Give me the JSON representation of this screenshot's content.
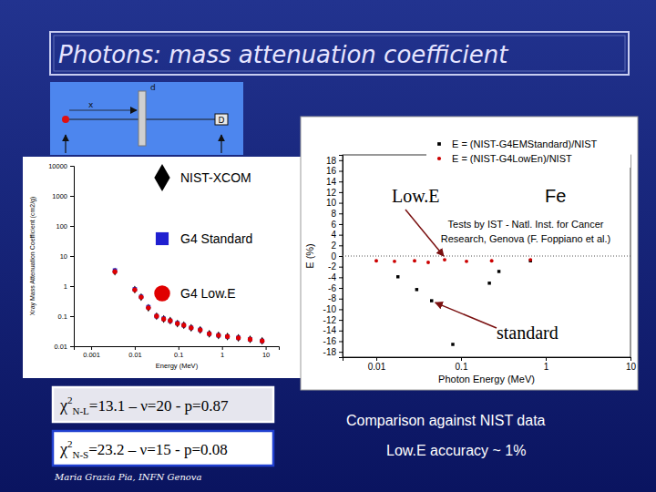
{
  "slide": {
    "title": "Photons: mass attenuation coefficient",
    "chi2": [
      {
        "symbol": "χ",
        "sup": "2",
        "sub": "N-L",
        "text": "=13.1 – ν=20 - p=0.87"
      },
      {
        "symbol": "χ",
        "sup": "2",
        "sub": "N-S",
        "text": "=23.2 – ν=15 - p=0.08"
      }
    ],
    "notes": [
      "Comparison against NIST data",
      "Low.E accuracy ~ 1%"
    ],
    "footer": "Maria Grazia Pia, INFN Genova"
  },
  "diagram": {
    "labels": {
      "thickness": "d",
      "depth": "x",
      "detector": "D"
    }
  },
  "chart_data": [
    {
      "type": "scatter",
      "x_label": "Energy (MeV)",
      "y_label": "Xray Mass Attenuation Coefficient (cm2/g)",
      "log": true,
      "xlim": [
        0.0004,
        20
      ],
      "ylim": [
        0.01,
        10000
      ],
      "xticks": [
        0.001,
        0.01,
        0.1,
        1,
        10
      ],
      "yticks": [
        0.01,
        0.1,
        1,
        10,
        100,
        1000,
        10000
      ],
      "legend": "right",
      "x": [
        0.0035,
        0.01,
        0.014,
        0.0205,
        0.0316,
        0.046,
        0.065,
        0.095,
        0.133,
        0.196,
        0.316,
        0.51,
        0.83,
        1.33,
        2.37,
        4.4,
        8.3
      ],
      "series": [
        {
          "name": "NIST-XCOM",
          "color": "#000000",
          "marker": "diamond",
          "values": [
            3.05,
            0.76,
            0.43,
            0.19,
            0.1,
            0.081,
            0.071,
            0.057,
            0.05,
            0.041,
            0.035,
            0.026,
            0.023,
            0.021,
            0.019,
            0.017,
            0.015
          ]
        },
        {
          "name": "G4 Standard",
          "color": "#1f1fd0",
          "marker": "square",
          "values": [
            3.3,
            0.78,
            0.44,
            0.2,
            0.1,
            0.082,
            0.07,
            0.058,
            0.05,
            0.041,
            0.035,
            0.026,
            0.023,
            0.021,
            0.019,
            0.017,
            0.015
          ]
        },
        {
          "name": "G4 Low.E",
          "color": "#e00000",
          "marker": "circle",
          "values": [
            3.02,
            0.75,
            0.43,
            0.19,
            0.1,
            0.08,
            0.071,
            0.057,
            0.05,
            0.041,
            0.035,
            0.026,
            0.023,
            0.021,
            0.019,
            0.017,
            0.015
          ]
        }
      ]
    },
    {
      "type": "scatter",
      "x_label": "Photon Energy (MeV)",
      "y_label": "E (%)",
      "log": "x",
      "xlim": [
        0.004,
        10
      ],
      "ylim": [
        -19,
        19
      ],
      "xticks": [
        0.01,
        0.1,
        1,
        10
      ],
      "yticks": [
        18,
        16,
        14,
        12,
        10,
        8,
        6,
        4,
        2,
        0,
        -2,
        -4,
        -6,
        -8,
        -10,
        -12,
        -14,
        -16,
        -18
      ],
      "legend": "upper right",
      "reference_lines": [
        0
      ],
      "annotations": {
        "method": "Low.E",
        "material": "Fe",
        "credit": [
          "Tests by IST - Natl. Inst. for Cancer",
          "Research, Genova (F. Foppiano et al.)"
        ],
        "pointer": "standard"
      },
      "series": [
        {
          "name": "E = (NIST-G4EMStandard)/NIST",
          "color": "#000000",
          "marker": "square",
          "x": [
            0.018,
            0.03,
            0.045,
            0.08,
            0.216,
            0.28,
            0.66
          ],
          "values": [
            -3.9,
            -6.3,
            -8.4,
            -16.6,
            -5.1,
            -2.9,
            -0.9
          ]
        },
        {
          "name": "E = (NIST-G4LowEn)/NIST",
          "color": "#cc0000",
          "marker": "circle",
          "x": [
            0.01,
            0.0164,
            0.0283,
            0.041,
            0.064,
            0.116,
            0.23,
            0.66
          ],
          "values": [
            -0.9,
            -1.0,
            -0.9,
            -1.2,
            -0.7,
            -1.0,
            -0.9,
            -0.7
          ]
        }
      ]
    }
  ]
}
